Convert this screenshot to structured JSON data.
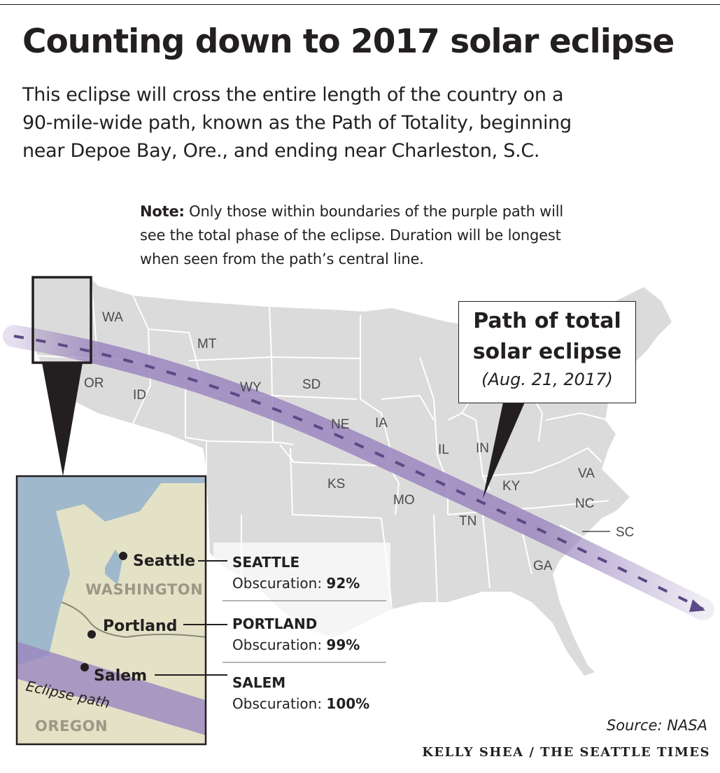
{
  "title": "Counting down to 2017 solar eclipse",
  "intro": [
    "This eclipse will cross the entire length of the country on a",
    "90-mile-wide path, known as the Path of Totality, beginning",
    "near Depoe Bay, Ore., and ending near Charleston, S.C."
  ],
  "note": {
    "label": "Note:",
    "line1": "Only those within boundaries of the purple path will",
    "line2": "see the total phase of the eclipse. Duration will be longest",
    "line3": "when seen from the path’s central line."
  },
  "callout": {
    "title_line1": "Path of total",
    "title_line2": "solar eclipse",
    "date": "(Aug. 21, 2017)"
  },
  "states": [
    "WA",
    "OR",
    "ID",
    "MT",
    "WY",
    "SD",
    "NE",
    "IA",
    "KS",
    "MO",
    "IL",
    "IN",
    "KY",
    "TN",
    "VA",
    "NC",
    "SC",
    "GA"
  ],
  "inset": {
    "cities": [
      "Seattle",
      "Portland",
      "Salem"
    ],
    "regions": [
      "WASHINGTON",
      "OREGON"
    ],
    "path_label": "Eclipse path"
  },
  "obscuration": [
    {
      "city": "SEATTLE",
      "label": "Obscuration:",
      "value": "92%"
    },
    {
      "city": "PORTLAND",
      "label": "Obscuration:",
      "value": "99%"
    },
    {
      "city": "SALEM",
      "label": "Obscuration:",
      "value": "100%"
    }
  ],
  "source": "Source: NASA",
  "credit": "KELLY SHEA / THE SEATTLE TIMES",
  "colors": {
    "land": "#dcdbdb",
    "state_border": "#ffffff",
    "eclipse_path": "#9a86bf",
    "path_arrows": "#5b4885",
    "water": "#9fb8cc",
    "inset_land": "#e3e2c6",
    "text": "#231f20"
  }
}
